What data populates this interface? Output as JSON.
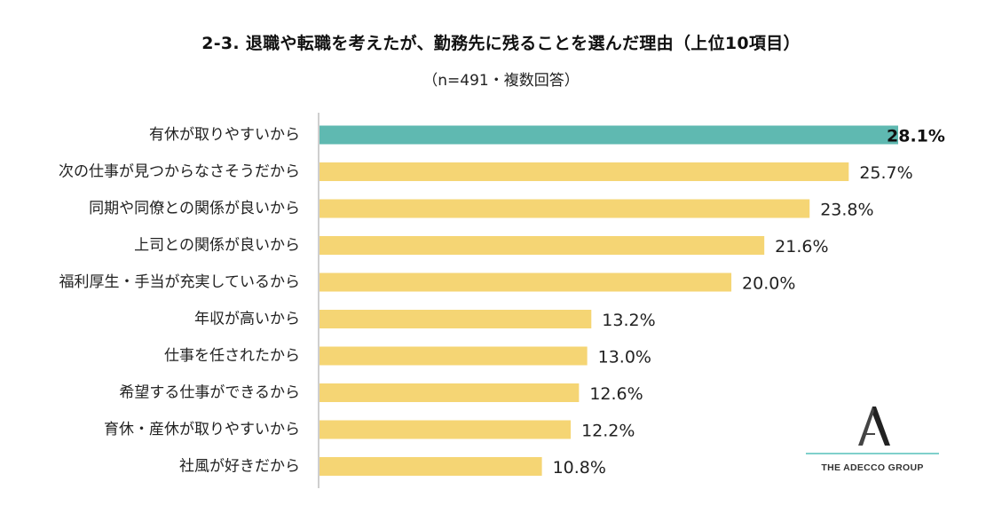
{
  "title": "2-3. 退職や転職を考えたが、勤務先に残ることを選んだ理由（上位10項目）",
  "subtitle": "（n=491・複数回答）",
  "logo": {
    "text": "THE ADECCO GROUP",
    "icon": "adecco-a-icon"
  },
  "colors": {
    "highlight": "#5fb9b1",
    "bar": "#f5d574",
    "axis": "#bfbfbf",
    "logo_line": "#7fd0cc"
  },
  "chart_data": {
    "type": "bar",
    "orientation": "horizontal",
    "categories": [
      "有休が取りやすいから",
      "次の仕事が見つからなさそうだから",
      "同期や同僚との関係が良いから",
      "上司との関係が良いから",
      "福利厚生・手当が充実しているから",
      "年収が高いから",
      "仕事を任されたから",
      "希望する仕事ができるから",
      "育休・産休が取りやすいから",
      "社風が好きだから"
    ],
    "values": [
      28.1,
      25.7,
      23.8,
      21.6,
      20.0,
      13.2,
      13.0,
      12.6,
      12.2,
      10.8
    ],
    "value_labels": [
      "28.1%",
      "25.7%",
      "23.8%",
      "21.6%",
      "20.0%",
      "13.2%",
      "13.0%",
      "12.6%",
      "12.2%",
      "10.8%"
    ],
    "highlight_index": 0,
    "xlim": [
      0,
      30
    ],
    "grid": false,
    "legend": "none"
  }
}
